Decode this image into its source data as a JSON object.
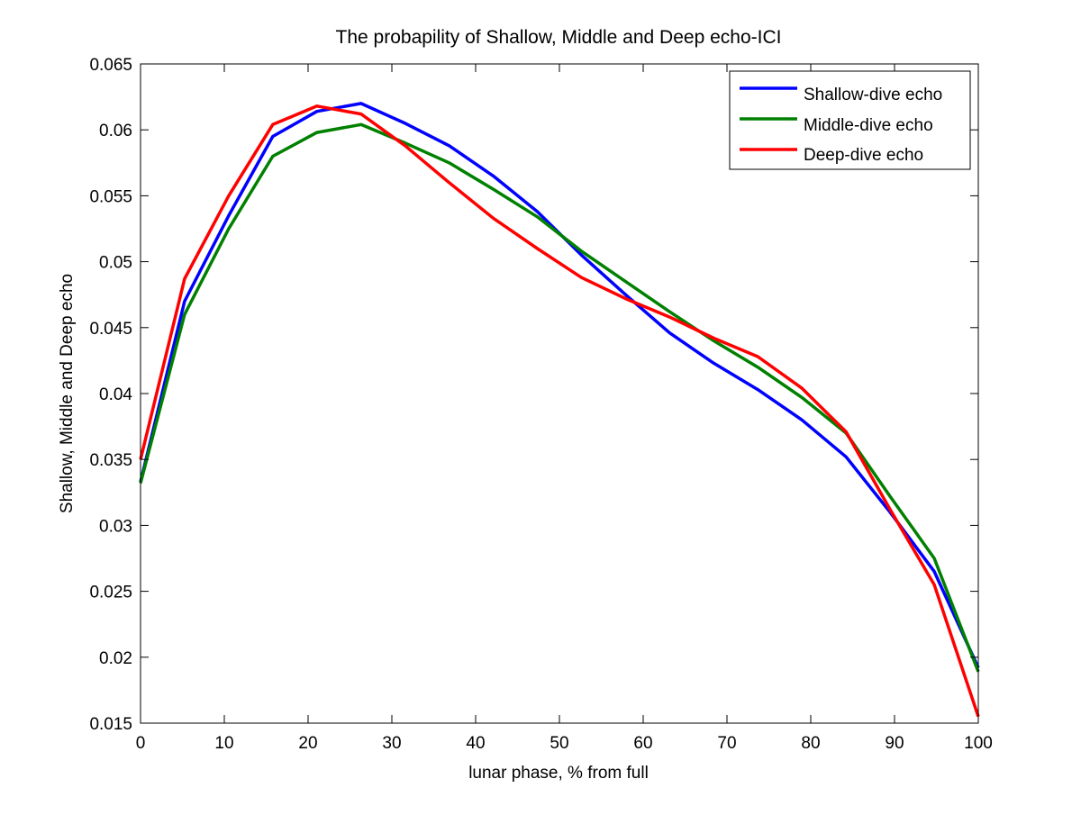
{
  "chart_data": {
    "type": "line",
    "title": "The probapility of Shallow, Middle and Deep echo-ICI",
    "xlabel": "lunar phase, % from full",
    "ylabel": "Shallow, Middle and Deep echo",
    "xlim": [
      0,
      100
    ],
    "ylim": [
      0.015,
      0.065
    ],
    "xticks": [
      0,
      10,
      20,
      30,
      40,
      50,
      60,
      70,
      80,
      90,
      100
    ],
    "xtick_labels": [
      "0",
      "10",
      "20",
      "30",
      "40",
      "50",
      "60",
      "70",
      "80",
      "90",
      "100"
    ],
    "yticks": [
      0.015,
      0.02,
      0.025,
      0.03,
      0.035,
      0.04,
      0.045,
      0.05,
      0.055,
      0.06,
      0.065
    ],
    "ytick_labels": [
      "0.015",
      "0.02",
      "0.025",
      "0.03",
      "0.035",
      "0.04",
      "0.045",
      "0.05",
      "0.055",
      "0.06",
      "0.065"
    ],
    "grid": false,
    "legend_position": "top-right",
    "x": [
      0,
      5.26,
      10.53,
      15.79,
      21.05,
      26.32,
      31.58,
      36.84,
      42.11,
      47.37,
      52.63,
      57.89,
      63.16,
      68.42,
      73.68,
      78.95,
      84.21,
      89.47,
      94.74,
      100
    ],
    "series": [
      {
        "name": "Shallow-dive echo",
        "color": "#0000ff",
        "values": [
          0.0333,
          0.047,
          0.0535,
          0.0595,
          0.0614,
          0.062,
          0.0605,
          0.0588,
          0.0565,
          0.0538,
          0.0505,
          0.0475,
          0.0446,
          0.0423,
          0.0403,
          0.038,
          0.0352,
          0.031,
          0.0265,
          0.0192
        ]
      },
      {
        "name": "Middle-dive echo",
        "color": "#008000",
        "values": [
          0.0332,
          0.046,
          0.0525,
          0.058,
          0.0598,
          0.0604,
          0.059,
          0.0575,
          0.0555,
          0.0534,
          0.0508,
          0.0485,
          0.0462,
          0.044,
          0.042,
          0.0397,
          0.037,
          0.0322,
          0.0275,
          0.0189
        ]
      },
      {
        "name": "Deep-dive echo",
        "color": "#ff0000",
        "values": [
          0.035,
          0.0487,
          0.055,
          0.0604,
          0.0618,
          0.0612,
          0.0588,
          0.056,
          0.0533,
          0.051,
          0.0488,
          0.0472,
          0.0458,
          0.0442,
          0.0428,
          0.0404,
          0.0371,
          0.0312,
          0.0255,
          0.0155
        ]
      }
    ]
  }
}
